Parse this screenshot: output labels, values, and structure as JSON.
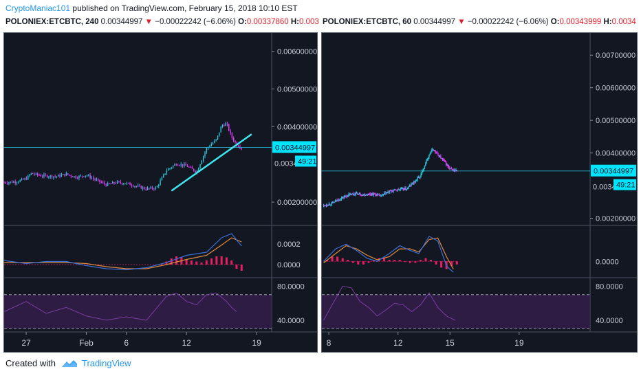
{
  "header": {
    "author": "CryptoManiac101",
    "published_text": "published on TradingView.com, February 15, 2018 10:10 EST"
  },
  "footer": {
    "created_with": "Created with",
    "brand": "TradingView"
  },
  "colors": {
    "background": "#131722",
    "up": "#26c6da",
    "down": "#e040fb",
    "price_line": "#26c6da",
    "trendline": "#3ee8f0",
    "macd_line": "#3b6fd6",
    "signal_line": "#e08a3c",
    "histogram": "#e91e63",
    "rsi_line": "#7a3fa0",
    "rsi_band": "#3b1f52"
  },
  "chart_data": [
    {
      "type": "candlestick",
      "symbol": "POLONIEX:ETCBTC",
      "interval": "240",
      "last": "0.00344997",
      "change": "−0.00022242",
      "change_pct": "(−6.06%)",
      "open_label": "O:",
      "open": "0.00337860",
      "high_label": "H:",
      "high": "0.003",
      "price_tag": "0.00344997",
      "price_tag_overlap": "0.0034",
      "countdown": "49:21",
      "price_value": 0.00344997,
      "y_ticks": [
        "0.00600000",
        "0.00500000",
        "0.00400000",
        "0.00200000"
      ],
      "y_tick_values": [
        0.006,
        0.005,
        0.004,
        0.002
      ],
      "ylim": [
        0.0014,
        0.0065
      ],
      "x_ticks": [
        "27",
        "Feb",
        "6",
        "12",
        "19"
      ],
      "x_tick_pos": [
        0,
        6,
        10,
        16,
        23
      ],
      "xlim": [
        -2.2,
        24.5
      ],
      "price_path": [
        [
          -2.2,
          0.00252
        ],
        [
          -1,
          0.00254
        ],
        [
          0,
          0.00262
        ],
        [
          0.5,
          0.00276
        ],
        [
          1.5,
          0.0027
        ],
        [
          3,
          0.00268
        ],
        [
          4,
          0.00274
        ],
        [
          5,
          0.00266
        ],
        [
          6,
          0.00272
        ],
        [
          7,
          0.00258
        ],
        [
          8,
          0.00246
        ],
        [
          9,
          0.00252
        ],
        [
          10,
          0.0025
        ],
        [
          11,
          0.00242
        ],
        [
          12,
          0.00235
        ],
        [
          13,
          0.00238
        ],
        [
          14,
          0.00284
        ],
        [
          15,
          0.00302
        ],
        [
          16,
          0.00296
        ],
        [
          17,
          0.0028
        ],
        [
          18,
          0.00342
        ],
        [
          19,
          0.00366
        ],
        [
          19.5,
          0.00403
        ],
        [
          20,
          0.00408
        ],
        [
          20.5,
          0.00372
        ],
        [
          21,
          0.00352
        ],
        [
          21.5,
          0.00345
        ]
      ],
      "trendline": [
        [
          14.5,
          0.0023
        ],
        [
          22.5,
          0.0038
        ]
      ],
      "macd": {
        "ylim": [
          -0.00012,
          0.00038
        ],
        "ticks": [
          "0.0002",
          "0.0000"
        ],
        "tick_values": [
          0.0002,
          0.0
        ],
        "macd_line": [
          [
            -2.2,
            4e-05
          ],
          [
            0,
            1e-05
          ],
          [
            2,
            3e-05
          ],
          [
            4,
            3e-05
          ],
          [
            6,
            -1e-05
          ],
          [
            8,
            -4e-05
          ],
          [
            10,
            -5e-05
          ],
          [
            12,
            -3e-05
          ],
          [
            14,
            2e-05
          ],
          [
            16,
            9e-05
          ],
          [
            18,
            0.00012
          ],
          [
            19.5,
            0.00026
          ],
          [
            20.5,
            0.0003
          ],
          [
            21.5,
            0.00018
          ]
        ],
        "signal_line": [
          [
            -2.2,
            2e-05
          ],
          [
            0,
            2e-05
          ],
          [
            2,
            2e-05
          ],
          [
            4,
            2e-05
          ],
          [
            6,
            1e-05
          ],
          [
            8,
            -2e-05
          ],
          [
            10,
            -4e-05
          ],
          [
            12,
            -4e-05
          ],
          [
            14,
            0.0
          ],
          [
            16,
            5e-05
          ],
          [
            18,
            9e-05
          ],
          [
            19.5,
            0.00019
          ],
          [
            20.5,
            0.00026
          ],
          [
            21.5,
            0.00022
          ]
        ],
        "histogram": [
          [
            13.5,
            1e-05
          ],
          [
            14,
            3e-05
          ],
          [
            14.5,
            6e-05
          ],
          [
            15,
            8e-05
          ],
          [
            15.5,
            7e-05
          ],
          [
            16,
            5e-05
          ],
          [
            16.5,
            4e-05
          ],
          [
            17,
            3e-05
          ],
          [
            17.5,
            2e-05
          ],
          [
            18,
            4e-05
          ],
          [
            18.5,
            6e-05
          ],
          [
            19,
            8e-05
          ],
          [
            19.5,
            8e-05
          ],
          [
            20,
            7e-05
          ],
          [
            20.5,
            4e-05
          ],
          [
            21,
            -4e-05
          ],
          [
            21.5,
            -6e-05
          ]
        ]
      },
      "rsi": {
        "ylim": [
          27,
          90
        ],
        "ticks": [
          "80.0000",
          "40.0000"
        ],
        "tick_values": [
          80,
          40
        ],
        "bands": [
          70,
          30
        ],
        "line": [
          [
            -2.2,
            50
          ],
          [
            0,
            62
          ],
          [
            2,
            48
          ],
          [
            4,
            55
          ],
          [
            6,
            45
          ],
          [
            8,
            40
          ],
          [
            10,
            44
          ],
          [
            12,
            40
          ],
          [
            14,
            68
          ],
          [
            15,
            72
          ],
          [
            16,
            62
          ],
          [
            17,
            58
          ],
          [
            18,
            70
          ],
          [
            19,
            72
          ],
          [
            20,
            62
          ],
          [
            20.5,
            55
          ],
          [
            21,
            50
          ]
        ]
      }
    },
    {
      "type": "candlestick",
      "symbol": "POLONIEX:ETCBTC",
      "interval": "60",
      "last": "0.00344997",
      "change": "−0.00022242",
      "change_pct": "(−6.06%)",
      "open_label": "O:",
      "open": "0.00343999",
      "high_label": "H:",
      "high": "0.0034",
      "price_tag": "0.00344997",
      "price_tag_overlap": "0.0034",
      "countdown": "49:21",
      "price_value": 0.00344997,
      "y_ticks": [
        "0.00700000",
        "0.00600000",
        "0.00500000",
        "0.00400000",
        "0.00200000"
      ],
      "y_tick_values": [
        0.007,
        0.006,
        0.005,
        0.004,
        0.002
      ],
      "ylim": [
        0.0018,
        0.0077
      ],
      "x_ticks": [
        "8",
        "12",
        "15",
        "19"
      ],
      "x_tick_pos": [
        8,
        12,
        15,
        19
      ],
      "xlim": [
        7.6,
        23.1
      ],
      "price_path": [
        [
          7.7,
          0.00239
        ],
        [
          8.2,
          0.00246
        ],
        [
          8.6,
          0.00258
        ],
        [
          9,
          0.00268
        ],
        [
          9.5,
          0.00276
        ],
        [
          10,
          0.00272
        ],
        [
          10.5,
          0.00275
        ],
        [
          11,
          0.00268
        ],
        [
          11.5,
          0.00282
        ],
        [
          12,
          0.00288
        ],
        [
          12.5,
          0.0029
        ],
        [
          12.9,
          0.0031
        ],
        [
          13.3,
          0.0033
        ],
        [
          13.7,
          0.00385
        ],
        [
          14,
          0.00412
        ],
        [
          14.3,
          0.00395
        ],
        [
          14.7,
          0.00372
        ],
        [
          15,
          0.0035
        ],
        [
          15.4,
          0.00345
        ]
      ],
      "macd": {
        "ylim": [
          -0.0001,
          0.00023
        ],
        "ticks": [
          "0.0000"
        ],
        "tick_values": [
          0.0
        ],
        "macd_line": [
          [
            7.7,
            0.0
          ],
          [
            8.4,
            8e-05
          ],
          [
            9,
            0.00011
          ],
          [
            9.6,
            7e-05
          ],
          [
            10.2,
            2e-05
          ],
          [
            10.8,
            0.0
          ],
          [
            11.5,
            5e-05
          ],
          [
            12.1,
            0.0001
          ],
          [
            12.7,
            7e-05
          ],
          [
            13.2,
            5e-05
          ],
          [
            13.8,
            0.00016
          ],
          [
            14.3,
            0.00013
          ],
          [
            14.8,
            -3e-05
          ],
          [
            15.2,
            -7e-05
          ]
        ],
        "signal_line": [
          [
            7.7,
            -1e-05
          ],
          [
            8.4,
            5e-05
          ],
          [
            9,
            0.0001
          ],
          [
            9.6,
            8e-05
          ],
          [
            10.2,
            4e-05
          ],
          [
            10.8,
            1e-05
          ],
          [
            11.5,
            3e-05
          ],
          [
            12.1,
            8e-05
          ],
          [
            12.7,
            8e-05
          ],
          [
            13.2,
            6e-05
          ],
          [
            13.8,
            0.00014
          ],
          [
            14.3,
            0.00015
          ],
          [
            14.8,
            3e-05
          ],
          [
            15.2,
            -5e-05
          ]
        ],
        "histogram": [
          [
            7.9,
            1e-05
          ],
          [
            8.2,
            3e-05
          ],
          [
            8.5,
            3e-05
          ],
          [
            8.8,
            2e-05
          ],
          [
            9.1,
            1e-05
          ],
          [
            9.4,
            -1e-05
          ],
          [
            9.7,
            -2e-05
          ],
          [
            10,
            -2e-05
          ],
          [
            10.3,
            -1e-05
          ],
          [
            10.6,
            1e-05
          ],
          [
            10.9,
            2e-05
          ],
          [
            11.2,
            2e-05
          ],
          [
            11.5,
            1e-05
          ],
          [
            11.8,
            1e-05
          ],
          [
            12.1,
            1e-05
          ],
          [
            12.4,
            0.0
          ],
          [
            12.7,
            -1e-05
          ],
          [
            13,
            -1e-05
          ],
          [
            13.3,
            1e-05
          ],
          [
            13.6,
            2e-05
          ],
          [
            13.9,
            1e-05
          ],
          [
            14.2,
            -2e-05
          ],
          [
            14.5,
            -4e-05
          ],
          [
            14.8,
            -5e-05
          ],
          [
            15.1,
            -3e-05
          ],
          [
            15.4,
            -2e-05
          ]
        ]
      },
      "rsi": {
        "ylim": [
          27,
          90
        ],
        "ticks": [
          "80.0000",
          "40.0000"
        ],
        "tick_values": [
          80,
          40
        ],
        "bands": [
          70,
          30
        ],
        "line": [
          [
            7.7,
            40
          ],
          [
            8.3,
            62
          ],
          [
            8.8,
            80
          ],
          [
            9.3,
            78
          ],
          [
            9.8,
            62
          ],
          [
            10.3,
            55
          ],
          [
            10.8,
            45
          ],
          [
            11.3,
            52
          ],
          [
            11.8,
            60
          ],
          [
            12.3,
            58
          ],
          [
            12.8,
            50
          ],
          [
            13.3,
            58
          ],
          [
            13.8,
            72
          ],
          [
            14.3,
            55
          ],
          [
            14.8,
            45
          ],
          [
            15.3,
            40
          ]
        ]
      }
    }
  ]
}
